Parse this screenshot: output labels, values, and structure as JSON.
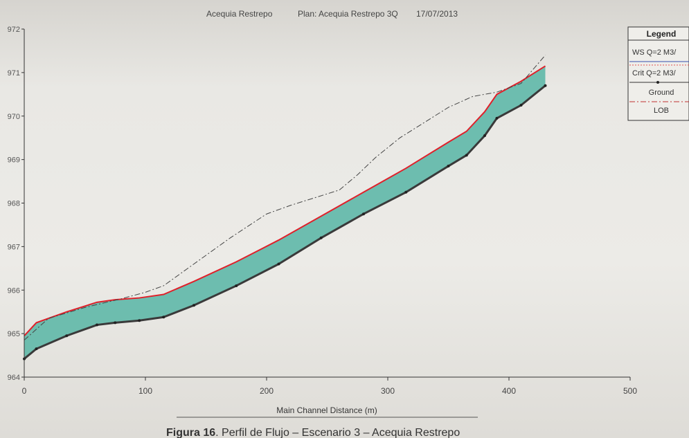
{
  "header": {
    "river": "Acequia Restrepo",
    "plan": "Plan: Acequia Restrepo 3Q",
    "date": "17/07/2013"
  },
  "caption": {
    "bold": "Figura 16",
    "text": ". Perfil de Flujo – Escenario 3 – Acequia Restrepo"
  },
  "colors": {
    "ws": "#e0202a",
    "fill": "#5fb8a8",
    "crit": "#e05050",
    "ground": "#3a3a3a",
    "lob": "#444444",
    "ws_legend": "#3a50b0"
  },
  "chart_data": {
    "type": "line",
    "title": "",
    "xlabel": "Main Channel Distance (m)",
    "ylabel": "",
    "xlim": [
      0,
      500
    ],
    "ylim": [
      964,
      972
    ],
    "x_ticks": [
      0,
      100,
      200,
      300,
      400,
      500
    ],
    "y_ticks": [
      964,
      965,
      966,
      967,
      968,
      969,
      970,
      971,
      972
    ],
    "legend": {
      "title": "Legend",
      "position": "top-right",
      "entries": [
        "WS Q=2 M3/",
        "Crit Q=2 M3/",
        "Ground",
        "LOB"
      ]
    },
    "series": [
      {
        "name": "WS Q=2 M3/",
        "x": [
          0,
          10,
          35,
          60,
          75,
          95,
          115,
          140,
          175,
          210,
          245,
          280,
          315,
          350,
          365,
          380,
          390,
          410,
          430
        ],
        "y": [
          964.95,
          965.25,
          965.5,
          965.72,
          965.78,
          965.82,
          965.9,
          966.2,
          966.65,
          967.15,
          967.7,
          968.25,
          968.8,
          969.4,
          969.65,
          970.1,
          970.5,
          970.8,
          971.15
        ]
      },
      {
        "name": "Ground",
        "x": [
          0,
          10,
          35,
          60,
          75,
          95,
          115,
          140,
          175,
          210,
          245,
          280,
          315,
          350,
          365,
          380,
          390,
          410,
          430
        ],
        "y": [
          964.42,
          964.65,
          964.95,
          965.2,
          965.25,
          965.3,
          965.38,
          965.65,
          966.1,
          966.6,
          967.2,
          967.75,
          968.25,
          968.85,
          969.1,
          969.55,
          969.95,
          970.25,
          970.7
        ]
      },
      {
        "name": "LOB",
        "x": [
          0,
          20,
          50,
          80,
          100,
          115,
          140,
          170,
          200,
          220,
          260,
          275,
          290,
          310,
          330,
          350,
          370,
          390,
          410,
          430
        ],
        "y": [
          964.85,
          965.35,
          965.6,
          965.8,
          965.95,
          966.1,
          966.6,
          967.2,
          967.75,
          967.95,
          968.3,
          968.65,
          969.05,
          969.5,
          969.85,
          970.2,
          970.45,
          970.55,
          970.75,
          971.4
        ]
      }
    ]
  }
}
